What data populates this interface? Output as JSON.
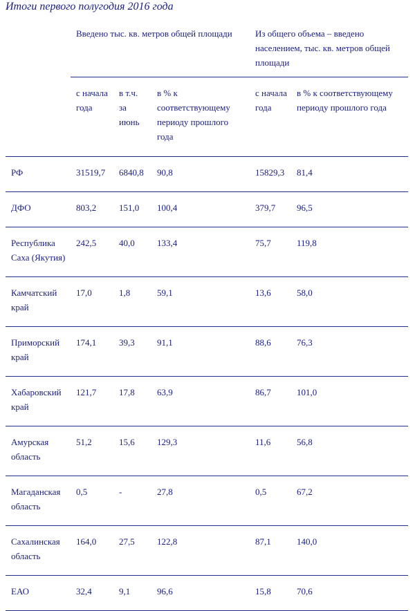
{
  "title": "Итоги первого полугодия 2016 года",
  "table": {
    "groups": [
      "Введено тыс. кв. метров общей площади",
      "Из общего объема – введено населением, тыс. кв. метров общей площади"
    ],
    "columns": [
      "с начала года",
      "в т.ч. за июнь",
      "в % к соответствующему периоду прошлого года",
      "с начала года",
      "в % к соответствующему периоду прошлого года"
    ],
    "rows": [
      [
        "РФ",
        "31519,7",
        "6840,8",
        "90,8",
        "15829,3",
        "81,4"
      ],
      [
        "ДФО",
        "803,2",
        "151,0",
        "100,4",
        "379,7",
        "96,5"
      ],
      [
        "Республика Саха (Якутия)",
        "242,5",
        "40,0",
        "133,4",
        "75,7",
        "119,8"
      ],
      [
        "Камчатский край",
        "17,0",
        "1,8",
        "59,1",
        "13,6",
        "58,0"
      ],
      [
        "Приморский край",
        "174,1",
        "39,3",
        "91,1",
        "88,6",
        "76,3"
      ],
      [
        "Хабаровский край",
        "121,7",
        "17,8",
        "63,9",
        "86,7",
        "101,0"
      ],
      [
        "Амурская область",
        "51,2",
        "15,6",
        "129,3",
        "11,6",
        "56,8"
      ],
      [
        "Магаданская область",
        "0,5",
        "-",
        "27,8",
        "0,5",
        "67,2"
      ],
      [
        "Сахалинская область",
        "164,0",
        "27,5",
        "122,8",
        "87,1",
        "140,0"
      ],
      [
        "ЕАО",
        "32,4",
        "9,1",
        "96,6",
        "15,8",
        "70,6"
      ]
    ]
  }
}
